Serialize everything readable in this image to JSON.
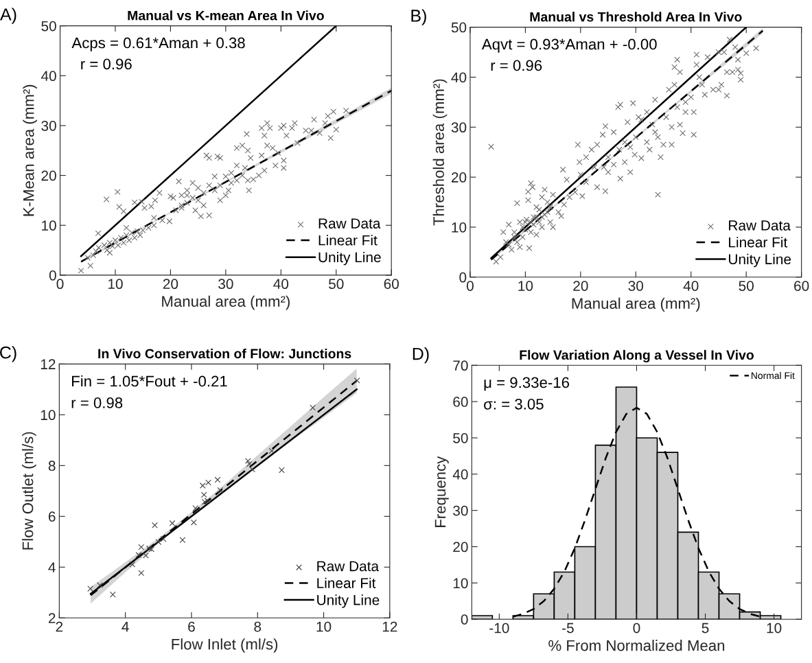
{
  "chart_data": [
    {
      "type": "scatter",
      "title": "Manual vs K-mean Area In Vivo",
      "xlabel": "Manual area (mm²)",
      "ylabel": "K-Mean area (mm²)",
      "annotations": [
        "A)",
        "Acps = 0.61*Aman + 0.38",
        "  r = 0.96"
      ],
      "xlim": [
        0,
        60
      ],
      "ylim": [
        0,
        50
      ],
      "xticks": [
        0,
        10,
        20,
        30,
        40,
        50,
        60
      ],
      "yticks": [
        0,
        10,
        20,
        30,
        40,
        50
      ],
      "legend": "bottom right",
      "series": [
        {
          "type": "scatter",
          "name": "Raw Data",
          "color": "#707070",
          "marker": "cross",
          "x": [
            3.8,
            5.5,
            6.9,
            8.4,
            10.4,
            10.7,
            11.5,
            13.5,
            14.8,
            15.3,
            16.5,
            17.2,
            18,
            18.5,
            19.8,
            20,
            20.5,
            21.5,
            22,
            23,
            24,
            24.5,
            25.5,
            26.5,
            27,
            27,
            28,
            28.5,
            29,
            29,
            30,
            30.5,
            31,
            32,
            32,
            33,
            33.5,
            33.8,
            34,
            34.5,
            34,
            34.2,
            35,
            36,
            36.5,
            36.5,
            37,
            37,
            37.5,
            37.5,
            38,
            38.5,
            39,
            39.5,
            40,
            40.5,
            40.5,
            40.5,
            41,
            42,
            42.5,
            43,
            44.5,
            45.5,
            46,
            47,
            48,
            48.5,
            49,
            49.5,
            50,
            51.8,
            7,
            8,
            8.5,
            9,
            9.5,
            10,
            10.5,
            11,
            11.5,
            12,
            12.5,
            13,
            13.5,
            14,
            14.5,
            15,
            16,
            17,
            17,
            12,
            9,
            6,
            6.5,
            5,
            22,
            23,
            25,
            25,
            26,
            27,
            28,
            29,
            30,
            31,
            32,
            33,
            26,
            24,
            21,
            22,
            23
          ],
          "values": [
            0.9,
            1.9,
            8.4,
            15.2,
            16.7,
            13.7,
            12.8,
            14.6,
            14.7,
            13.5,
            13.8,
            15,
            16.5,
            11,
            10.8,
            15.8,
            15.5,
            18.8,
            14,
            16,
            18.5,
            13,
            11.8,
            24,
            23.5,
            12,
            19.8,
            23.8,
            23.5,
            15,
            19.8,
            17,
            20.5,
            25.5,
            22,
            26,
            21.5,
            28.3,
            25,
            23.5,
            19,
            17,
            19.2,
            20,
            24,
            29.5,
            28,
            21,
            30.5,
            26,
            29.5,
            25.5,
            22,
            24.5,
            29.5,
            30,
            21.5,
            23,
            28,
            29.5,
            30.5,
            26.5,
            29,
            29,
            31.2,
            28.5,
            30.5,
            31.9,
            27.5,
            32.8,
            29.2,
            33,
            5.5,
            6,
            5,
            6.5,
            5.8,
            7,
            6,
            7.5,
            6.5,
            8,
            7,
            8.5,
            7.5,
            8.8,
            8,
            9,
            9.5,
            10,
            11.5,
            9.5,
            4.5,
            4,
            4.8,
            3.5,
            16,
            17,
            15,
            17.5,
            16.5,
            18,
            17,
            18,
            16,
            18.5,
            19,
            20,
            14,
            15.5,
            13,
            13.5,
            14.5
          ]
        },
        {
          "type": "line",
          "name": "Linear Fit",
          "color": "#000000",
          "line_style": "dashed",
          "x": [
            3.8,
            10,
            20,
            30,
            40,
            50,
            60
          ],
          "values": [
            2.7,
            6.5,
            12.6,
            18.7,
            24.8,
            30.9,
            37.0
          ],
          "lower": [
            2.4,
            6.3,
            12.4,
            18.5,
            24.5,
            30.4,
            36.4
          ],
          "upper": [
            3.0,
            6.7,
            12.7,
            18.9,
            25.1,
            31.3,
            37.6
          ]
        },
        {
          "type": "line",
          "name": "Unity Line",
          "color": "#000000",
          "line_style": "solid",
          "x": [
            3.8,
            50
          ],
          "values": [
            3.8,
            50
          ]
        }
      ]
    },
    {
      "type": "scatter",
      "title": "Manual vs Threshold Area In Vivo",
      "xlabel": "Manual area (mm²)",
      "ylabel": "Threshold area (mm²)",
      "annotations": [
        "B)",
        "Aqvt = 0.93*Aman + -0.00",
        "  r = 0.96"
      ],
      "xlim": [
        0,
        60
      ],
      "ylim": [
        0,
        50
      ],
      "xticks": [
        0,
        10,
        20,
        30,
        40,
        50,
        60
      ],
      "yticks": [
        0,
        10,
        20,
        30,
        40,
        50
      ],
      "legend": "bottom right",
      "series": [
        {
          "type": "scatter",
          "name": "Raw Data",
          "color": "#707070",
          "marker": "cross",
          "x": [
            3.8,
            4.7,
            5.5,
            6,
            7,
            7.5,
            8,
            8.5,
            9,
            9,
            9.5,
            10,
            10.2,
            10.5,
            10.5,
            10.7,
            11,
            11.3,
            11,
            11.5,
            12,
            12,
            12.5,
            13,
            13,
            13.5,
            13.5,
            14,
            14.5,
            15,
            15,
            16,
            16.5,
            16.8,
            17,
            17.5,
            18,
            19,
            19.5,
            19.8,
            20,
            20.3,
            21,
            21,
            22,
            22.5,
            23,
            23,
            24,
            24.2,
            24.5,
            24.5,
            25,
            25,
            26,
            26,
            26.8,
            27.2,
            27.2,
            27,
            28,
            28,
            28.5,
            29,
            29,
            29.5,
            29.8,
            30,
            30.5,
            31,
            31,
            32,
            32,
            32.5,
            33,
            33.5,
            33.5,
            34,
            34,
            34.5,
            35,
            35.5,
            36,
            36.5,
            36.5,
            37,
            37,
            37.5,
            37.5,
            38,
            38,
            38.5,
            39,
            39,
            40,
            40.5,
            40.5,
            41,
            41,
            41.5,
            42,
            42.5,
            43,
            44,
            45,
            45,
            45.5,
            46,
            46.5,
            46.5,
            47,
            47.5,
            48,
            48.5,
            48.5,
            49,
            49,
            50,
            51.8,
            6.5,
            7,
            8,
            8.5,
            9.5,
            10,
            11,
            11.5,
            12,
            12.5,
            13,
            14,
            14.5
          ],
          "values": [
            26.1,
            3.1,
            4,
            9,
            10.5,
            5.5,
            8,
            14.8,
            11,
            6,
            8,
            9.5,
            11.5,
            17.1,
            15.4,
            5.8,
            18.8,
            18,
            11,
            12,
            14,
            8.5,
            11,
            10,
            16,
            17.5,
            12.5,
            13,
            11,
            16.5,
            10,
            13,
            12.2,
            21.5,
            14.5,
            19.5,
            16,
            17,
            26.5,
            23,
            20.5,
            16.2,
            24,
            19,
            25.5,
            22,
            18,
            26.5,
            28.5,
            22,
            30.2,
            17.2,
            24,
            21,
            29,
            22.5,
            34,
            34.5,
            19.7,
            25.5,
            27,
            23,
            31,
            26,
            21,
            34.8,
            24.5,
            28,
            32,
            31.5,
            23.8,
            27,
            33,
            25.5,
            30.5,
            29,
            35.5,
            16.5,
            28,
            24,
            26.5,
            32,
            37.5,
            30,
            26.5,
            38.5,
            42,
            43.5,
            34,
            41,
            30.5,
            28.8,
            33,
            35,
            36,
            33,
            28.5,
            44.5,
            42.5,
            40,
            38.5,
            36.5,
            44,
            37.5,
            45,
            37.5,
            38.5,
            45,
            36.3,
            41,
            47.5,
            41,
            46,
            41.5,
            43.5,
            39.5,
            40.8,
            44.8,
            45.8,
            7,
            6.5,
            9,
            7,
            10,
            11,
            9,
            10.5,
            12,
            13.5,
            12,
            15,
            14
          ]
        },
        {
          "type": "line",
          "name": "Linear Fit",
          "color": "#000000",
          "line_style": "dashed",
          "x": [
            3.8,
            10,
            20,
            30,
            40,
            50,
            53
          ],
          "values": [
            3.5,
            9.3,
            18.6,
            27.9,
            37.2,
            46.5,
            49.3
          ],
          "lower": [
            3.2,
            9.1,
            18.4,
            27.7,
            36.9,
            46.0,
            48.8
          ],
          "upper": [
            3.8,
            9.5,
            18.8,
            28.1,
            37.5,
            47.0,
            49.8
          ]
        },
        {
          "type": "line",
          "name": "Unity Line",
          "color": "#000000",
          "line_style": "solid",
          "x": [
            3.8,
            50
          ],
          "values": [
            3.8,
            50
          ]
        }
      ]
    },
    {
      "type": "scatter",
      "title": "In Vivo Conservation of Flow: Junctions",
      "xlabel": "Flow Inlet (ml/s)",
      "ylabel": "Flow Outlet (ml/s)",
      "annotations": [
        "C)",
        "Fin = 1.05*Fout + -0.21",
        "r = 0.98"
      ],
      "xlim": [
        2,
        12
      ],
      "ylim": [
        2,
        12
      ],
      "xticks": [
        2,
        4,
        6,
        8,
        10,
        12
      ],
      "yticks": [
        2,
        4,
        6,
        8,
        10,
        12
      ],
      "legend": "bottom right",
      "series": [
        {
          "type": "scatter",
          "name": "Raw Data",
          "color": "#404040",
          "marker": "cross",
          "x": [
            2.94,
            3.23,
            3.62,
            4.21,
            4.4,
            4.48,
            4.48,
            4.62,
            4.72,
            4.79,
            4.89,
            5.0,
            5.15,
            5.42,
            5.73,
            6.07,
            6.12,
            6.34,
            6.38,
            6.4,
            6.48,
            6.51,
            6.79,
            6.87,
            7.71,
            7.75,
            7.84,
            8.43,
            8.73,
            9.67,
            11.01
          ],
          "values": [
            3.15,
            3.29,
            2.92,
            4.11,
            4.48,
            4.79,
            3.77,
            4.46,
            4.73,
            4.7,
            5.65,
            4.99,
            5.11,
            5.73,
            5.07,
            5.76,
            6.32,
            7.21,
            6.85,
            6.57,
            6.62,
            7.33,
            7.44,
            7.03,
            8.18,
            8.06,
            7.85,
            8.58,
            7.82,
            10.28,
            11.35
          ]
        },
        {
          "type": "line",
          "name": "Linear Fit",
          "color": "#000000",
          "line_style": "dashed",
          "x": [
            2.95,
            4,
            5,
            6,
            7,
            8,
            9,
            10,
            11
          ],
          "values": [
            2.89,
            3.99,
            5.04,
            6.09,
            7.14,
            8.19,
            9.24,
            10.29,
            11.34
          ],
          "lower": [
            2.56,
            3.79,
            4.94,
            6.01,
            7.02,
            7.97,
            8.94,
            9.89,
            10.86
          ],
          "upper": [
            3.22,
            4.19,
            5.14,
            6.17,
            7.26,
            8.41,
            9.54,
            10.69,
            11.82
          ]
        },
        {
          "type": "line",
          "name": "Unity Line",
          "color": "#000000",
          "line_style": "solid",
          "x": [
            2.95,
            11
          ],
          "values": [
            2.95,
            11
          ]
        }
      ]
    },
    {
      "type": "histogram",
      "title": "Flow Variation Along a Vessel In Vivo",
      "xlabel": "% From Normalized Mean",
      "ylabel": "Frequency",
      "annotations": [
        "D)",
        "μ = 9.33e-16",
        "σ: = 3.05"
      ],
      "xlim": [
        -12,
        12
      ],
      "ylim": [
        0,
        70
      ],
      "xticks": [
        -10,
        -5,
        0,
        5,
        10
      ],
      "yticks": [
        0,
        10,
        20,
        30,
        40,
        50,
        60,
        70
      ],
      "legend": "top right",
      "color": "#cccccc",
      "bins": [
        -12,
        -10.5,
        -9,
        -7.5,
        -6,
        -4.5,
        -3,
        -1.5,
        0,
        1.5,
        3,
        4.5,
        6,
        7.5,
        9,
        10.5
      ],
      "values": [
        1,
        0,
        1,
        7,
        13,
        20,
        48,
        64,
        50,
        46,
        24,
        13,
        7,
        2,
        1
      ],
      "series": [
        {
          "type": "line",
          "name": "Normal Fit",
          "color": "#000000",
          "line_style": "dashed",
          "x": [
            -9,
            -8.25,
            -7.5,
            -6.75,
            -6,
            -5.25,
            -4.5,
            -3.75,
            -3,
            -2.25,
            -1.5,
            -0.75,
            0,
            0.75,
            1.5,
            2.25,
            3,
            3.75,
            4.5,
            5.25,
            6,
            6.75,
            7.5,
            8.25,
            9
          ],
          "values": [
            0.7,
            1.5,
            2.8,
            5,
            8.4,
            13.2,
            19.6,
            27.4,
            35.9,
            44.4,
            51.6,
            56.6,
            58.3,
            56.6,
            51.6,
            44.4,
            35.9,
            27.4,
            19.6,
            13.2,
            8.4,
            5,
            2.8,
            1.5,
            0.7
          ]
        }
      ]
    }
  ]
}
